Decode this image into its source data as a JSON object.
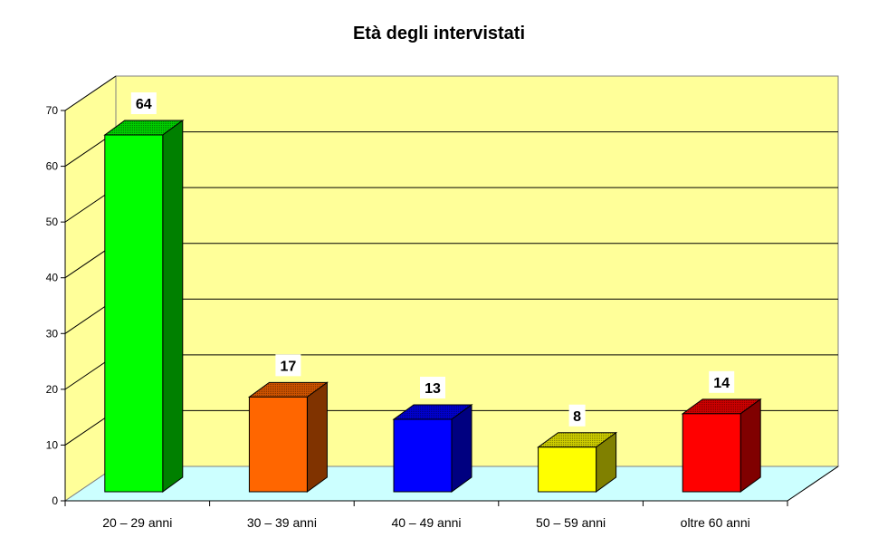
{
  "chart_data": {
    "type": "bar",
    "style": "3d-column",
    "title": "Età degli intervistati",
    "xlabel": "",
    "ylabel": "",
    "categories": [
      "20 – 29 anni",
      "30 – 39 anni",
      "40 – 49 anni",
      "50 – 59 anni",
      "oltre 60 anni"
    ],
    "values": [
      64,
      17,
      13,
      8,
      14
    ],
    "data_labels": [
      "64",
      "17",
      "13",
      "8",
      "14"
    ],
    "bar_colors": [
      "#00ff00",
      "#ff6600",
      "#0000ff",
      "#ffff00",
      "#ff0000"
    ],
    "ylim": [
      0,
      70
    ],
    "yticks": [
      0,
      10,
      20,
      30,
      40,
      50,
      60,
      70
    ],
    "grid": true,
    "legend": "none",
    "wall_color": "#ffff99",
    "floor_color": "#ccffff"
  }
}
